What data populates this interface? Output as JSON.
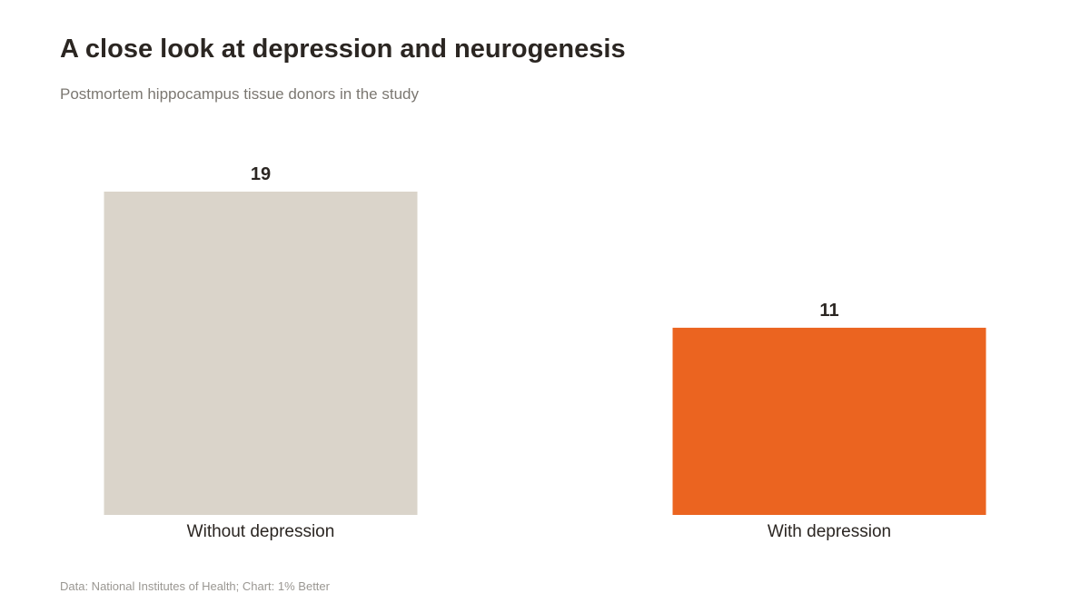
{
  "header": {
    "title": "A close look at depression and neurogenesis",
    "subtitle": "Postmortem hippocampus tissue donors in the study"
  },
  "footer": {
    "source": "Data: National Institutes of Health; Chart: 1% Better"
  },
  "chart_data": {
    "type": "bar",
    "title": "A close look at depression and neurogenesis",
    "subtitle": "Postmortem hippocampus tissue donors in the study",
    "categories": [
      "Without depression",
      "With depression"
    ],
    "values": [
      19,
      11
    ],
    "colors": [
      "#dad4ca",
      "#eb6420"
    ],
    "xlabel": "",
    "ylabel": "",
    "ylim": [
      0,
      19
    ],
    "grid": false,
    "data_labels": true
  }
}
